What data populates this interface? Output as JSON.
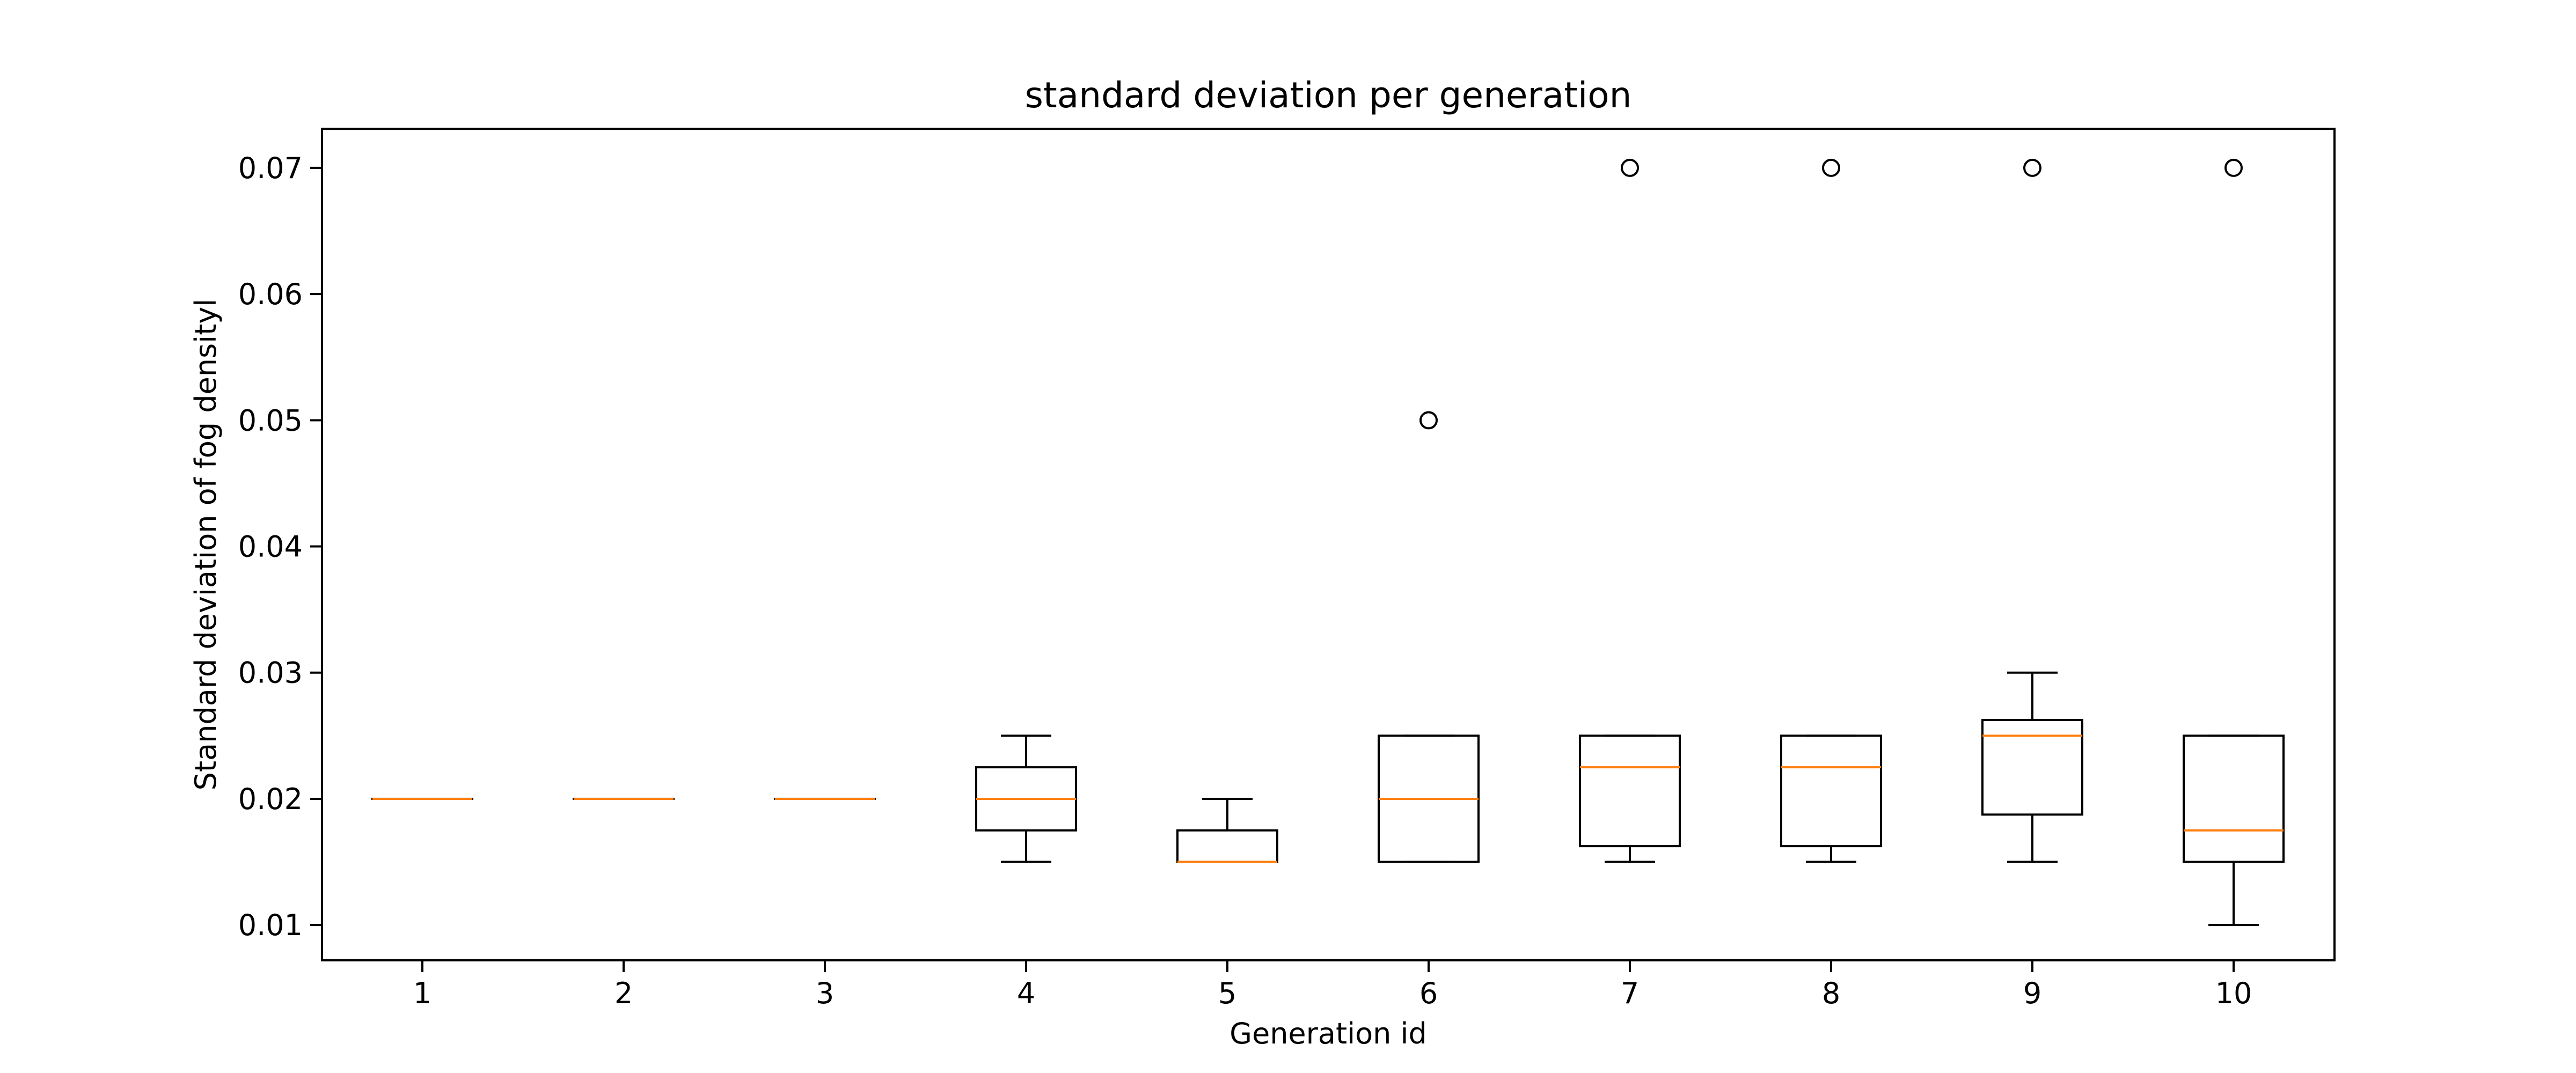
{
  "chart_data": {
    "type": "boxplot",
    "title": "standard deviation per generation",
    "xlabel": "Generation id",
    "ylabel": "Standard deviation of fog densityl",
    "ylim": [
      0.0072,
      0.0731
    ],
    "yticks": [
      0.01,
      0.02,
      0.03,
      0.04,
      0.05,
      0.06,
      0.07
    ],
    "ytick_labels": [
      "0.01",
      "0.02",
      "0.03",
      "0.04",
      "0.05",
      "0.06",
      "0.07"
    ],
    "categories": [
      "1",
      "2",
      "3",
      "4",
      "5",
      "6",
      "7",
      "8",
      "9",
      "10"
    ],
    "grid": false,
    "colors": {
      "box": "#000000",
      "median": "#ff7f0e",
      "outlier": "#000000"
    },
    "boxes": [
      {
        "category": "1",
        "whisker_low": 0.02,
        "q1": 0.02,
        "median": 0.02,
        "q3": 0.02,
        "whisker_high": 0.02,
        "outliers": []
      },
      {
        "category": "2",
        "whisker_low": 0.02,
        "q1": 0.02,
        "median": 0.02,
        "q3": 0.02,
        "whisker_high": 0.02,
        "outliers": []
      },
      {
        "category": "3",
        "whisker_low": 0.02,
        "q1": 0.02,
        "median": 0.02,
        "q3": 0.02,
        "whisker_high": 0.02,
        "outliers": []
      },
      {
        "category": "4",
        "whisker_low": 0.015,
        "q1": 0.0175,
        "median": 0.02,
        "q3": 0.0225,
        "whisker_high": 0.025,
        "outliers": []
      },
      {
        "category": "5",
        "whisker_low": 0.015,
        "q1": 0.015,
        "median": 0.015,
        "q3": 0.0175,
        "whisker_high": 0.02,
        "outliers": []
      },
      {
        "category": "6",
        "whisker_low": 0.015,
        "q1": 0.015,
        "median": 0.02,
        "q3": 0.025,
        "whisker_high": 0.025,
        "outliers": [
          0.05
        ]
      },
      {
        "category": "7",
        "whisker_low": 0.015,
        "q1": 0.01625,
        "median": 0.0225,
        "q3": 0.025,
        "whisker_high": 0.025,
        "outliers": [
          0.07
        ]
      },
      {
        "category": "8",
        "whisker_low": 0.015,
        "q1": 0.01625,
        "median": 0.0225,
        "q3": 0.025,
        "whisker_high": 0.025,
        "outliers": [
          0.07
        ]
      },
      {
        "category": "9",
        "whisker_low": 0.015,
        "q1": 0.01875,
        "median": 0.025,
        "q3": 0.02625,
        "whisker_high": 0.03,
        "outliers": [
          0.07
        ]
      },
      {
        "category": "10",
        "whisker_low": 0.01,
        "q1": 0.015,
        "median": 0.0175,
        "q3": 0.025,
        "whisker_high": 0.025,
        "outliers": [
          0.07
        ]
      }
    ]
  }
}
